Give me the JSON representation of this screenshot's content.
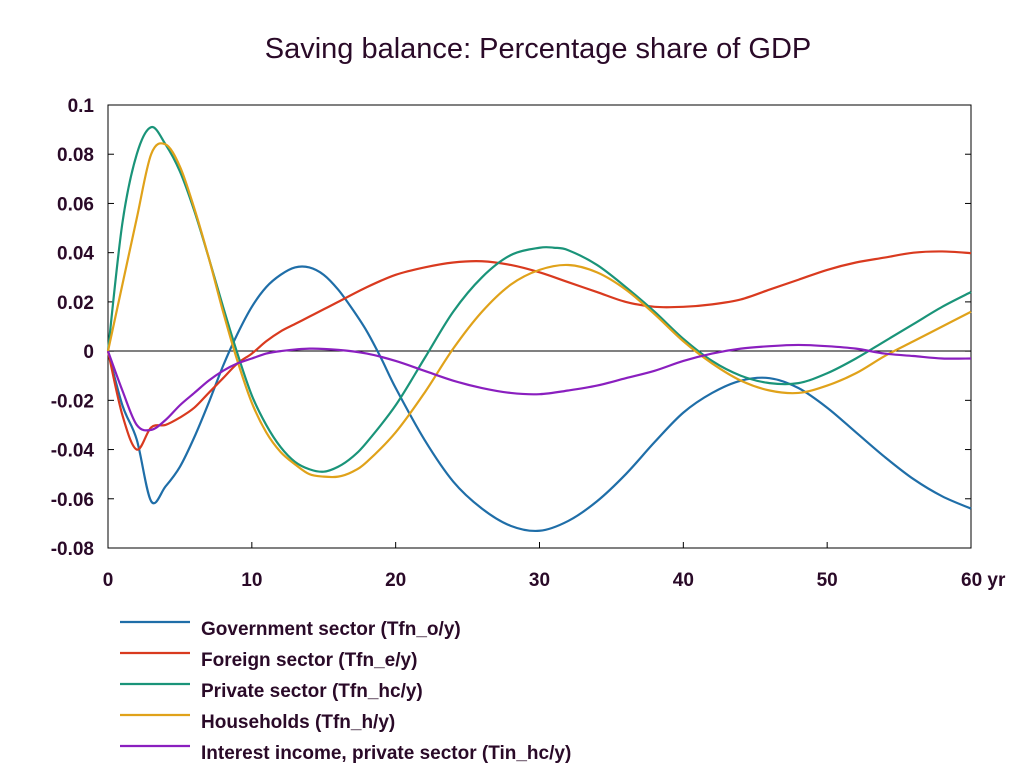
{
  "chart_data": {
    "type": "line",
    "title": "Saving balance: Percentage share of GDP",
    "xlabel": "",
    "x_unit": "yr",
    "ylabel": "",
    "xlim": [
      0,
      60
    ],
    "ylim": [
      -0.08,
      0.1
    ],
    "xticks": [
      0,
      10,
      20,
      30,
      40,
      50,
      60
    ],
    "xtick_labels": [
      "0",
      "10",
      "20",
      "30",
      "40",
      "50",
      "60 yr"
    ],
    "yticks": [
      0.1,
      0.08,
      0.06,
      0.04,
      0.02,
      0,
      -0.02,
      -0.04,
      -0.06,
      -0.08
    ],
    "ytick_labels": [
      "0.1",
      "0.08",
      "0.06",
      "0.04",
      "0.02",
      "0",
      "-0.02",
      "-0.04",
      "-0.06",
      "-0.08"
    ],
    "grid": false,
    "zero_line": true,
    "legend_position": "bottom",
    "series": [
      {
        "name": "Government sector (Tfn_o/y)",
        "color": "#1f6ea8",
        "points": [
          [
            0,
            0
          ],
          [
            1,
            -0.022
          ],
          [
            2,
            -0.036
          ],
          [
            3,
            -0.061
          ],
          [
            4,
            -0.055
          ],
          [
            5,
            -0.047
          ],
          [
            6,
            -0.035
          ],
          [
            7,
            -0.021
          ],
          [
            8,
            -0.006
          ],
          [
            9,
            0.007
          ],
          [
            10,
            0.018
          ],
          [
            11,
            0.026
          ],
          [
            12,
            0.031
          ],
          [
            13,
            0.034
          ],
          [
            14,
            0.034
          ],
          [
            15,
            0.031
          ],
          [
            16,
            0.025
          ],
          [
            17,
            0.017
          ],
          [
            18,
            0.008
          ],
          [
            19,
            -0.003
          ],
          [
            20,
            -0.015
          ],
          [
            22,
            -0.036
          ],
          [
            24,
            -0.053
          ],
          [
            26,
            -0.064
          ],
          [
            28,
            -0.071
          ],
          [
            30,
            -0.073
          ],
          [
            32,
            -0.069
          ],
          [
            34,
            -0.061
          ],
          [
            36,
            -0.05
          ],
          [
            38,
            -0.037
          ],
          [
            40,
            -0.025
          ],
          [
            42,
            -0.017
          ],
          [
            44,
            -0.012
          ],
          [
            46,
            -0.011
          ],
          [
            48,
            -0.015
          ],
          [
            50,
            -0.023
          ],
          [
            52,
            -0.033
          ],
          [
            54,
            -0.043
          ],
          [
            56,
            -0.052
          ],
          [
            58,
            -0.059
          ],
          [
            60,
            -0.064
          ]
        ]
      },
      {
        "name": "Foreign sector (Tfn_e/y)",
        "color": "#d93a1f",
        "points": [
          [
            0,
            0
          ],
          [
            1,
            -0.026
          ],
          [
            2,
            -0.04
          ],
          [
            3,
            -0.031
          ],
          [
            4,
            -0.03
          ],
          [
            5,
            -0.027
          ],
          [
            6,
            -0.023
          ],
          [
            7,
            -0.017
          ],
          [
            8,
            -0.011
          ],
          [
            9,
            -0.005
          ],
          [
            10,
            -0.001
          ],
          [
            11,
            0.004
          ],
          [
            12,
            0.008
          ],
          [
            13,
            0.011
          ],
          [
            14,
            0.014
          ],
          [
            15,
            0.017
          ],
          [
            16,
            0.02
          ],
          [
            18,
            0.026
          ],
          [
            20,
            0.031
          ],
          [
            22,
            0.034
          ],
          [
            24,
            0.036
          ],
          [
            26,
            0.0365
          ],
          [
            28,
            0.035
          ],
          [
            30,
            0.032
          ],
          [
            32,
            0.028
          ],
          [
            34,
            0.024
          ],
          [
            36,
            0.02
          ],
          [
            38,
            0.018
          ],
          [
            40,
            0.018
          ],
          [
            42,
            0.019
          ],
          [
            44,
            0.021
          ],
          [
            46,
            0.025
          ],
          [
            48,
            0.029
          ],
          [
            50,
            0.033
          ],
          [
            52,
            0.036
          ],
          [
            54,
            0.038
          ],
          [
            56,
            0.04
          ],
          [
            58,
            0.0405
          ],
          [
            60,
            0.0398
          ]
        ]
      },
      {
        "name": "Private sector (Tfn_hc/y)",
        "color": "#1a9479",
        "points": [
          [
            0,
            0
          ],
          [
            1,
            0.052
          ],
          [
            2,
            0.08
          ],
          [
            3,
            0.091
          ],
          [
            4,
            0.084
          ],
          [
            5,
            0.073
          ],
          [
            6,
            0.057
          ],
          [
            7,
            0.038
          ],
          [
            8,
            0.018
          ],
          [
            9,
            -0.001
          ],
          [
            10,
            -0.018
          ],
          [
            11,
            -0.03
          ],
          [
            12,
            -0.039
          ],
          [
            13,
            -0.045
          ],
          [
            14,
            -0.048
          ],
          [
            15,
            -0.049
          ],
          [
            16,
            -0.047
          ],
          [
            17,
            -0.043
          ],
          [
            18,
            -0.037
          ],
          [
            20,
            -0.022
          ],
          [
            22,
            -0.003
          ],
          [
            24,
            0.016
          ],
          [
            26,
            0.03
          ],
          [
            28,
            0.039
          ],
          [
            30,
            0.042
          ],
          [
            31,
            0.042
          ],
          [
            32,
            0.041
          ],
          [
            34,
            0.035
          ],
          [
            36,
            0.026
          ],
          [
            38,
            0.016
          ],
          [
            40,
            0.005
          ],
          [
            42,
            -0.004
          ],
          [
            44,
            -0.01
          ],
          [
            46,
            -0.013
          ],
          [
            48,
            -0.013
          ],
          [
            50,
            -0.009
          ],
          [
            52,
            -0.003
          ],
          [
            54,
            0.004
          ],
          [
            56,
            0.011
          ],
          [
            58,
            0.018
          ],
          [
            60,
            0.024
          ]
        ]
      },
      {
        "name": "Households (Tfn_h/y)",
        "color": "#e0a21a",
        "points": [
          [
            0,
            0
          ],
          [
            1,
            0.027
          ],
          [
            2,
            0.054
          ],
          [
            3,
            0.08
          ],
          [
            4,
            0.084
          ],
          [
            5,
            0.075
          ],
          [
            6,
            0.058
          ],
          [
            7,
            0.038
          ],
          [
            8,
            0.016
          ],
          [
            9,
            -0.004
          ],
          [
            10,
            -0.021
          ],
          [
            11,
            -0.033
          ],
          [
            12,
            -0.041
          ],
          [
            13,
            -0.046
          ],
          [
            14,
            -0.05
          ],
          [
            15,
            -0.051
          ],
          [
            16,
            -0.051
          ],
          [
            17,
            -0.049
          ],
          [
            18,
            -0.045
          ],
          [
            20,
            -0.033
          ],
          [
            22,
            -0.017
          ],
          [
            24,
            0.001
          ],
          [
            26,
            0.016
          ],
          [
            28,
            0.027
          ],
          [
            30,
            0.033
          ],
          [
            32,
            0.035
          ],
          [
            34,
            0.032
          ],
          [
            36,
            0.025
          ],
          [
            38,
            0.015
          ],
          [
            40,
            0.004
          ],
          [
            42,
            -0.005
          ],
          [
            44,
            -0.012
          ],
          [
            46,
            -0.016
          ],
          [
            48,
            -0.017
          ],
          [
            50,
            -0.014
          ],
          [
            52,
            -0.009
          ],
          [
            54,
            -0.002
          ],
          [
            56,
            0.004
          ],
          [
            58,
            0.01
          ],
          [
            60,
            0.016
          ]
        ]
      },
      {
        "name": "Interest income, private sector (Tin_hc/y)",
        "color": "#8a1fbf",
        "points": [
          [
            0,
            0
          ],
          [
            1,
            -0.016
          ],
          [
            2,
            -0.03
          ],
          [
            3,
            -0.032
          ],
          [
            4,
            -0.028
          ],
          [
            5,
            -0.022
          ],
          [
            6,
            -0.017
          ],
          [
            7,
            -0.012
          ],
          [
            8,
            -0.008
          ],
          [
            9,
            -0.005
          ],
          [
            10,
            -0.003
          ],
          [
            11,
            -0.001
          ],
          [
            12,
            0.0
          ],
          [
            14,
            0.001
          ],
          [
            16,
            0.0005
          ],
          [
            18,
            -0.001
          ],
          [
            20,
            -0.004
          ],
          [
            22,
            -0.008
          ],
          [
            24,
            -0.012
          ],
          [
            26,
            -0.015
          ],
          [
            28,
            -0.017
          ],
          [
            30,
            -0.0175
          ],
          [
            32,
            -0.016
          ],
          [
            34,
            -0.014
          ],
          [
            36,
            -0.011
          ],
          [
            38,
            -0.008
          ],
          [
            40,
            -0.004
          ],
          [
            42,
            -0.001
          ],
          [
            44,
            0.001
          ],
          [
            46,
            0.002
          ],
          [
            48,
            0.0025
          ],
          [
            50,
            0.002
          ],
          [
            52,
            0.001
          ],
          [
            54,
            -0.001
          ],
          [
            56,
            -0.002
          ],
          [
            58,
            -0.003
          ],
          [
            60,
            -0.003
          ]
        ]
      }
    ]
  }
}
